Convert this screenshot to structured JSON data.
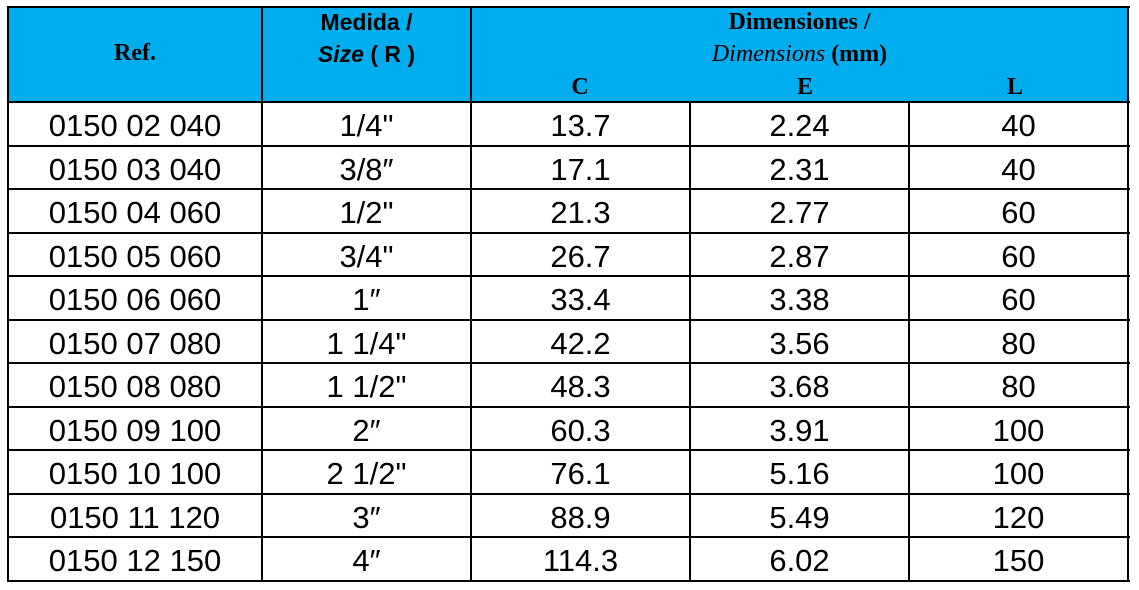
{
  "header": {
    "ref": "Ref.",
    "medida": "Medida /",
    "size_italic": "Size",
    "size_rest": "( R )",
    "dimensiones": "Dimensiones /",
    "dimensions_italic": "Dimensions",
    "dimensions_rest": "(mm)",
    "sub": [
      "C",
      "E",
      "L"
    ]
  },
  "table": {
    "rows": [
      [
        "0150 02 040",
        "1/4\"",
        "13.7",
        "2.24",
        "40"
      ],
      [
        "0150 03 040",
        "3/8″",
        "17.1",
        "2.31",
        "40"
      ],
      [
        "0150 04 060",
        "1/2\"",
        "21.3",
        "2.77",
        "60"
      ],
      [
        "0150 05 060",
        "3/4\"",
        "26.7",
        "2.87",
        "60"
      ],
      [
        "0150 06 060",
        "1″",
        "33.4",
        "3.38",
        "60"
      ],
      [
        "0150 07 080",
        "1 1/4\"",
        "42.2",
        "3.56",
        "80"
      ],
      [
        "0150 08 080",
        "1 1/2\"",
        "48.3",
        "3.68",
        "80"
      ],
      [
        "0150 09 100",
        "2″",
        "60.3",
        "3.91",
        "100"
      ],
      [
        "0150 10 100",
        "2 1/2\"",
        "76.1",
        "5.16",
        "100"
      ],
      [
        "0150 11 120",
        "3″",
        "88.9",
        "5.49",
        "120"
      ],
      [
        "0150 12 150",
        "4″",
        "114.3",
        "6.02",
        "150"
      ]
    ]
  }
}
